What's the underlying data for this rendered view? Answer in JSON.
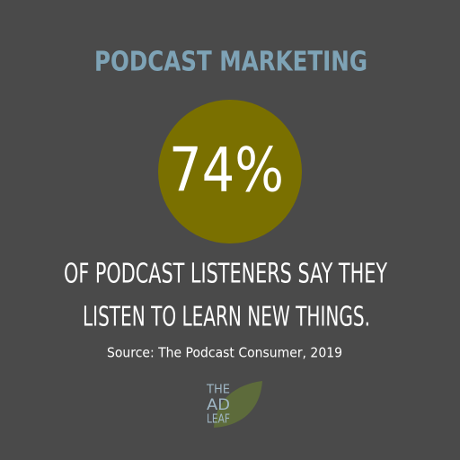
{
  "title": "PODCAST MARKETING",
  "stat": "74%",
  "caption_lines": [
    "OF PODCAST LISTENERS SAY THEY",
    "LISTEN TO LEARN NEW THINGS."
  ],
  "source": "Source: The Podcast Consumer, 2019",
  "logo": {
    "lines": [
      "THE",
      "AD",
      "LEAF"
    ]
  }
}
